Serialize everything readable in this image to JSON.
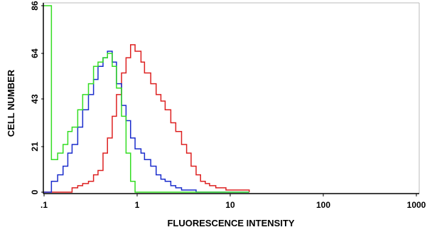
{
  "chart_data": {
    "type": "line",
    "log_x": true,
    "step": true,
    "xlabel": "FLUORESCENCE INTENSITY",
    "ylabel": "CELL NUMBER",
    "xlim": [
      0.1,
      1000
    ],
    "ylim": [
      0,
      86
    ],
    "xticks": [
      {
        "value": 0.1,
        "label": ".1"
      },
      1,
      10,
      100,
      1000
    ],
    "yticks": [
      0,
      21,
      43,
      64,
      86
    ],
    "x": [
      0.1,
      0.12,
      0.14,
      0.16,
      0.18,
      0.2,
      0.23,
      0.26,
      0.3,
      0.34,
      0.38,
      0.43,
      0.48,
      0.54,
      0.6,
      0.68,
      0.76,
      0.85,
      0.95,
      1.1,
      1.2,
      1.4,
      1.6,
      1.8,
      2,
      2.3,
      2.6,
      3,
      3.4,
      3.8,
      4.3,
      4.8,
      5.4,
      6,
      7,
      8,
      9,
      10,
      12,
      14,
      16
    ],
    "series": [
      {
        "color": "#dd2020",
        "values": [
          0,
          0,
          0,
          0,
          0,
          2,
          3,
          4,
          5,
          8,
          10,
          18,
          25,
          35,
          45,
          55,
          62,
          68,
          65,
          60,
          55,
          50,
          45,
          42,
          38,
          32,
          28,
          22,
          18,
          12,
          8,
          5,
          4,
          3,
          2,
          2,
          1,
          1,
          1,
          1,
          0
        ]
      },
      {
        "color": "#1a2ccc",
        "values": [
          0,
          5,
          8,
          12,
          18,
          22,
          30,
          38,
          45,
          52,
          58,
          62,
          65,
          60,
          50,
          40,
          33,
          25,
          20,
          18,
          15,
          12,
          8,
          6,
          5,
          3,
          2,
          1,
          1,
          1,
          0,
          0,
          0,
          0,
          0,
          0,
          0,
          0,
          0,
          0,
          0
        ]
      },
      {
        "color": "#33dd22",
        "values": [
          86,
          15,
          18,
          22,
          28,
          30,
          38,
          45,
          50,
          58,
          60,
          62,
          64,
          58,
          48,
          35,
          18,
          5,
          0,
          0,
          0,
          0,
          0,
          0,
          0,
          0,
          0,
          0,
          0,
          0,
          0,
          0,
          0,
          0,
          0,
          0,
          0,
          0,
          0,
          0,
          0
        ]
      }
    ]
  }
}
